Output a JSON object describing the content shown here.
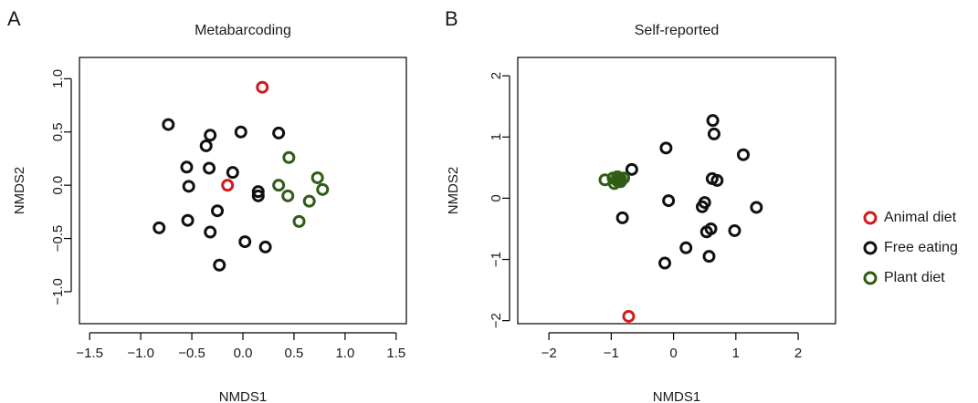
{
  "colors": {
    "animal": "#d01c1c",
    "free": "#111111",
    "plant": "#2f5d16"
  },
  "legend": {
    "items": [
      {
        "label": "Animal diet",
        "color_key": "animal"
      },
      {
        "label": "Free eating",
        "color_key": "free"
      },
      {
        "label": "Plant diet",
        "color_key": "plant"
      }
    ]
  },
  "chart_data": [
    {
      "type": "scatter",
      "panel": "A",
      "title": "Metabarcoding",
      "xlabel": "NMDS1",
      "ylabel": "NMDS2",
      "xlim": [
        -1.6,
        1.6
      ],
      "ylim": [
        -1.3,
        1.2
      ],
      "xticks": [
        -1.5,
        -1.0,
        -0.5,
        0.0,
        0.5,
        1.0,
        1.5
      ],
      "xtick_labels": [
        "−1.5",
        "−1.0",
        "−0.5",
        "0.0",
        "0.5",
        "1.0",
        "1.5"
      ],
      "yticks": [
        -1.0,
        -0.5,
        0.0,
        0.5,
        1.0
      ],
      "ytick_labels": [
        "−1.0",
        "−0.5",
        "0.0",
        "0.5",
        "1.0"
      ],
      "series": [
        {
          "name": "Animal diet",
          "color_key": "animal",
          "points": [
            [
              0.19,
              0.92
            ],
            [
              -0.15,
              0.0
            ]
          ]
        },
        {
          "name": "Free eating",
          "color_key": "free",
          "points": [
            [
              -0.73,
              0.57
            ],
            [
              -0.36,
              0.37
            ],
            [
              -0.32,
              0.47
            ],
            [
              -0.02,
              0.5
            ],
            [
              0.35,
              0.49
            ],
            [
              -0.55,
              0.17
            ],
            [
              -0.33,
              0.16
            ],
            [
              -0.1,
              0.12
            ],
            [
              -0.53,
              -0.01
            ],
            [
              0.15,
              -0.06
            ],
            [
              0.15,
              -0.1
            ],
            [
              -0.25,
              -0.24
            ],
            [
              -0.54,
              -0.33
            ],
            [
              -0.82,
              -0.4
            ],
            [
              -0.32,
              -0.44
            ],
            [
              0.02,
              -0.53
            ],
            [
              0.22,
              -0.58
            ],
            [
              -0.23,
              -0.75
            ]
          ]
        },
        {
          "name": "Plant diet",
          "color_key": "plant",
          "points": [
            [
              0.45,
              0.26
            ],
            [
              0.35,
              0.0
            ],
            [
              0.44,
              -0.1
            ],
            [
              0.73,
              0.07
            ],
            [
              0.78,
              -0.04
            ],
            [
              0.65,
              -0.15
            ],
            [
              0.55,
              -0.34
            ]
          ]
        }
      ]
    },
    {
      "type": "scatter",
      "panel": "B",
      "title": "Self-reported",
      "xlabel": "NMDS1",
      "ylabel": "NMDS2",
      "xlim": [
        -2.5,
        2.6
      ],
      "ylim": [
        -2.05,
        2.3
      ],
      "xticks": [
        -2,
        -1,
        0,
        1,
        2
      ],
      "xtick_labels": [
        "−2",
        "−1",
        "0",
        "1",
        "2"
      ],
      "yticks": [
        -2,
        -1,
        0,
        1,
        2
      ],
      "ytick_labels": [
        "−2",
        "−1",
        "0",
        "1",
        "2"
      ],
      "series": [
        {
          "name": "Animal diet",
          "color_key": "animal",
          "points": [
            [
              -0.72,
              -1.93
            ]
          ]
        },
        {
          "name": "Free eating",
          "color_key": "free",
          "points": [
            [
              0.63,
              1.27
            ],
            [
              0.65,
              1.05
            ],
            [
              -0.12,
              0.82
            ],
            [
              1.12,
              0.71
            ],
            [
              -0.67,
              0.47
            ],
            [
              0.62,
              0.32
            ],
            [
              0.7,
              0.29
            ],
            [
              -0.08,
              -0.04
            ],
            [
              0.5,
              -0.07
            ],
            [
              0.46,
              -0.14
            ],
            [
              1.33,
              -0.15
            ],
            [
              -0.82,
              -0.32
            ],
            [
              0.6,
              -0.5
            ],
            [
              0.53,
              -0.55
            ],
            [
              0.98,
              -0.53
            ],
            [
              0.2,
              -0.81
            ],
            [
              0.57,
              -0.95
            ],
            [
              -0.14,
              -1.06
            ]
          ]
        },
        {
          "name": "Plant diet",
          "color_key": "plant",
          "points": [
            [
              -1.1,
              0.3
            ],
            [
              -0.97,
              0.33
            ],
            [
              -0.9,
              0.35
            ],
            [
              -0.85,
              0.31
            ],
            [
              -0.8,
              0.33
            ],
            [
              -0.9,
              0.28
            ],
            [
              -0.95,
              0.24
            ],
            [
              -0.85,
              0.27
            ],
            [
              -0.88,
              0.3
            ]
          ]
        }
      ]
    }
  ]
}
